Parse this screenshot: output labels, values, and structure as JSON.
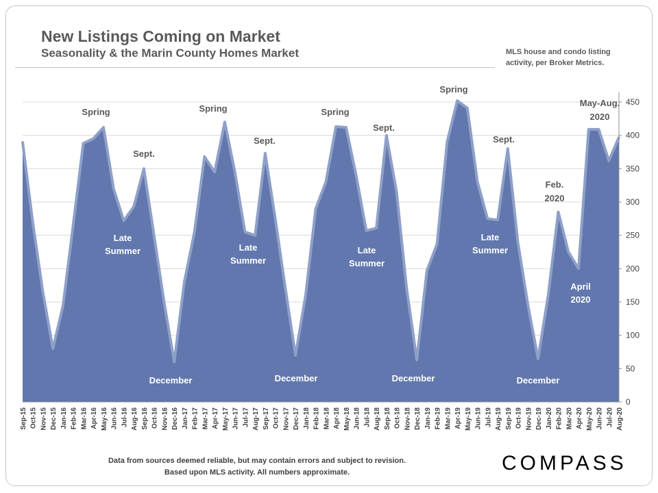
{
  "header": {
    "title": "New Listings Coming on Market",
    "subtitle": "Seasonality & the Marin County Homes Market",
    "note_line1": "MLS house and condo listing",
    "note_line2": "activity, per Broker Metrics."
  },
  "footer": {
    "line1": "Data from sources deemed reliable, but may contain errors and subject to revision.",
    "line2": "Based upon MLS activity.  All numbers approximate.",
    "logo": "COMPASS"
  },
  "colors": {
    "area_fill": "#6177ad",
    "area_stroke": "#8fa0c8",
    "grid": "#d9d9d9"
  },
  "chart_data": {
    "type": "area",
    "title": "New Listings Coming on Market",
    "xlabel": "",
    "ylabel": "",
    "ylim": [
      0,
      450
    ],
    "yticks": [
      0,
      50,
      100,
      150,
      200,
      250,
      300,
      350,
      400,
      450
    ],
    "grid": true,
    "categories": [
      "Sep-15",
      "Oct-15",
      "Nov-15",
      "Dec-15",
      "Jan-16",
      "Feb-16",
      "Mar-16",
      "Apr-16",
      "May-16",
      "Jun-16",
      "Jul-16",
      "Aug-16",
      "Sep-16",
      "Oct-16",
      "Nov-16",
      "Dec-16",
      "Jan-17",
      "Feb-17",
      "Mar-17",
      "Apr-17",
      "May-17",
      "Jun-17",
      "Jul-17",
      "Aug-17",
      "Sep-17",
      "Oct-17",
      "Nov-17",
      "Dec-17",
      "Jan-18",
      "Feb-18",
      "Mar-18",
      "Apr-18",
      "May-18",
      "Jun-18",
      "Jul-18",
      "Aug-18",
      "Sep-18",
      "Oct-18",
      "Nov-18",
      "Dec-18",
      "Jan-19",
      "Feb-19",
      "Mar-19",
      "Apr-19",
      "May-19",
      "Jun-19",
      "Jul-19",
      "Aug-19",
      "Sep-19",
      "Oct-19",
      "Nov-19",
      "Dec-19",
      "Jan-20",
      "Feb-20",
      "Mar-20",
      "Apr-20",
      "May-20",
      "Jun-20",
      "Jul-20",
      "Aug-20"
    ],
    "values": [
      390,
      270,
      165,
      80,
      145,
      265,
      388,
      395,
      412,
      320,
      272,
      293,
      350,
      250,
      150,
      60,
      180,
      255,
      368,
      345,
      420,
      345,
      255,
      250,
      373,
      275,
      170,
      70,
      160,
      290,
      330,
      413,
      412,
      340,
      257,
      261,
      400,
      315,
      170,
      63,
      197,
      237,
      390,
      452,
      441,
      330,
      275,
      273,
      380,
      240,
      145,
      65,
      160,
      285,
      225,
      200,
      409,
      409,
      362,
      397
    ],
    "annotations": [
      {
        "text": "Spring",
        "anchor": "Apr-16",
        "style": "dark"
      },
      {
        "text": "Sept.",
        "anchor": "Sep-16",
        "style": "dark"
      },
      {
        "text": "Late",
        "anchor": "Jul-16",
        "style": "light"
      },
      {
        "text": "Summer",
        "anchor": "Jul-16",
        "style": "light"
      },
      {
        "text": "December",
        "anchor": "Dec-16",
        "style": "light"
      },
      {
        "text": "Spring",
        "anchor": "Apr-17",
        "style": "dark"
      },
      {
        "text": "Sept.",
        "anchor": "Sep-17",
        "style": "dark"
      },
      {
        "text": "Late",
        "anchor": "Aug-17",
        "style": "light"
      },
      {
        "text": "Summer",
        "anchor": "Aug-17",
        "style": "light"
      },
      {
        "text": "December",
        "anchor": "Dec-17",
        "style": "light"
      },
      {
        "text": "Spring",
        "anchor": "Apr-18",
        "style": "dark"
      },
      {
        "text": "Sept.",
        "anchor": "Sep-18",
        "style": "dark"
      },
      {
        "text": "Late",
        "anchor": "Jul-18",
        "style": "light"
      },
      {
        "text": "Summer",
        "anchor": "Jul-18",
        "style": "light"
      },
      {
        "text": "December",
        "anchor": "Dec-18",
        "style": "light"
      },
      {
        "text": "Spring",
        "anchor": "Apr-19",
        "style": "dark"
      },
      {
        "text": "Sept.",
        "anchor": "Sep-19",
        "style": "dark"
      },
      {
        "text": "Late",
        "anchor": "Jul-19",
        "style": "light"
      },
      {
        "text": "Summer",
        "anchor": "Jul-19",
        "style": "light"
      },
      {
        "text": "December",
        "anchor": "Dec-19",
        "style": "light"
      },
      {
        "text": "Feb.",
        "anchor": "Feb-20",
        "style": "dark"
      },
      {
        "text": "2020",
        "anchor": "Feb-20",
        "style": "dark"
      },
      {
        "text": "April",
        "anchor": "Apr-20",
        "style": "light"
      },
      {
        "text": "2020",
        "anchor": "Apr-20",
        "style": "light"
      },
      {
        "text": "May-Aug.",
        "anchor": "Jun-20",
        "style": "dark"
      },
      {
        "text": "2020",
        "anchor": "Jun-20",
        "style": "dark"
      }
    ]
  }
}
